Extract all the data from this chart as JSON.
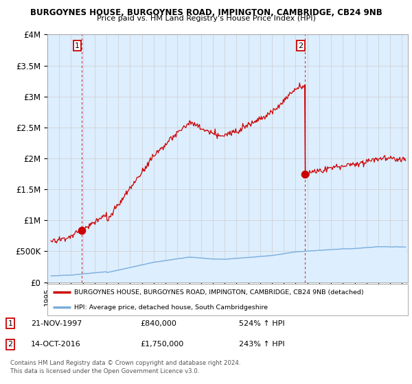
{
  "title_line1": "BURGOYNES HOUSE, BURGOYNES ROAD, IMPINGTON, CAMBRIDGE, CB24 9NB",
  "title_line2": "Price paid vs. HM Land Registry's House Price Index (HPI)",
  "ylabel_ticks": [
    "£0",
    "£500K",
    "£1M",
    "£1.5M",
    "£2M",
    "£2.5M",
    "£3M",
    "£3.5M",
    "£4M"
  ],
  "ylabel_values": [
    0,
    500000,
    1000000,
    1500000,
    2000000,
    2500000,
    3000000,
    3500000,
    4000000
  ],
  "ylim": [
    0,
    4000000
  ],
  "xlim_start": 1995.3,
  "xlim_end": 2025.5,
  "purchase1_x": 1997.89,
  "purchase1_y": 840000,
  "purchase2_x": 2016.79,
  "purchase2_y": 1750000,
  "legend_label_red": "BURGOYNES HOUSE, BURGOYNES ROAD, IMPINGTON, CAMBRIDGE, CB24 9NB (detached)",
  "legend_label_blue": "HPI: Average price, detached house, South Cambridgeshire",
  "annotation1_date": "21-NOV-1997",
  "annotation1_price": "£840,000",
  "annotation1_hpi": "524% ↑ HPI",
  "annotation2_date": "14-OCT-2016",
  "annotation2_price": "£1,750,000",
  "annotation2_hpi": "243% ↑ HPI",
  "copyright": "Contains HM Land Registry data © Crown copyright and database right 2024.\nThis data is licensed under the Open Government Licence v3.0.",
  "red_color": "#cc0000",
  "blue_color": "#7aaddb",
  "fill_color": "#ddeeff",
  "bg_color": "#ffffff",
  "grid_color": "#cccccc"
}
